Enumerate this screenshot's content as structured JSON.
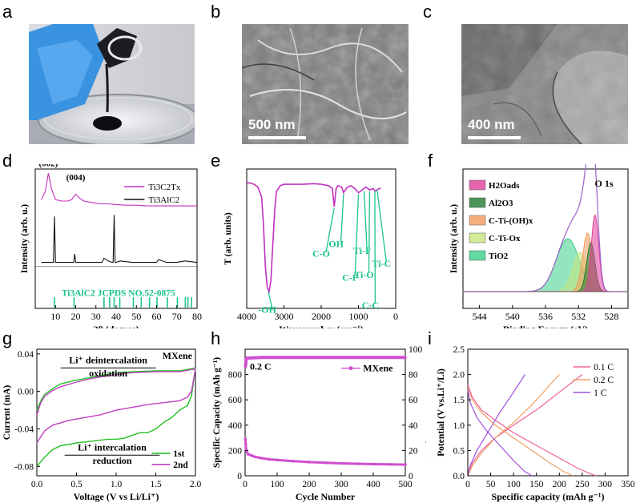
{
  "panels": {
    "a": {
      "letter": "a"
    },
    "b": {
      "letter": "b",
      "scale_bar": "500 nm"
    },
    "c": {
      "letter": "c",
      "scale_bar": "400 nm"
    },
    "d": {
      "letter": "d"
    },
    "e": {
      "letter": "e"
    },
    "f": {
      "letter": "f"
    },
    "g": {
      "letter": "g"
    },
    "h": {
      "letter": "h"
    },
    "i": {
      "letter": "i"
    }
  },
  "chart_data": [
    {
      "panel": "d",
      "type": "line",
      "xlabel": "2θ (degree)",
      "ylabel": "Intensity (arb. u.)",
      "xlim": [
        0,
        80
      ],
      "xticks": [
        "10",
        "20",
        "30",
        "40",
        "50",
        "60",
        "70",
        "80"
      ],
      "legend": [
        "Ti3C2Tx",
        "Ti3AlC2"
      ],
      "peak_labels": [
        "(002)",
        "(004)"
      ],
      "reference_label": "Ti3AlC2 JCPDS NO.52-0875",
      "series": [
        {
          "name": "Ti3C2Tx",
          "color": "#c030c0",
          "x": [
            3,
            5,
            6.5,
            8,
            10,
            13,
            16,
            18,
            20,
            22,
            24,
            28,
            32,
            36,
            40,
            45,
            50,
            55,
            60,
            65,
            70,
            75,
            80
          ],
          "y": [
            0.78,
            0.84,
            0.97,
            0.86,
            0.78,
            0.77,
            0.77,
            0.78,
            0.82,
            0.79,
            0.77,
            0.76,
            0.75,
            0.75,
            0.745,
            0.74,
            0.74,
            0.735,
            0.735,
            0.735,
            0.735,
            0.735,
            0.735
          ]
        },
        {
          "name": "Ti3AlC2",
          "color": "#111111",
          "x": [
            3,
            9,
            9.5,
            10,
            12,
            19,
            19.5,
            20,
            30,
            33,
            34,
            36,
            38,
            38.5,
            39,
            39.5,
            40,
            42,
            48,
            56,
            60,
            61,
            65,
            70,
            74,
            80
          ],
          "y": [
            0.33,
            0.33,
            0.66,
            0.33,
            0.33,
            0.33,
            0.39,
            0.33,
            0.33,
            0.33,
            0.36,
            0.34,
            0.33,
            0.33,
            0.67,
            0.33,
            0.33,
            0.34,
            0.33,
            0.33,
            0.33,
            0.35,
            0.33,
            0.33,
            0.34,
            0.33
          ]
        }
      ],
      "reference_peaks": [
        9.5,
        19.2,
        34,
        36.8,
        39,
        41.8,
        48.5,
        52.4,
        56.5,
        60.2,
        65.3,
        70.3,
        74.2,
        75.5,
        77.3
      ]
    },
    {
      "panel": "e",
      "type": "line",
      "xlabel": "Wavenumber (cm⁻¹)",
      "ylabel": "T (arb. units)",
      "xlim": [
        4000,
        0
      ],
      "xticks": [
        "4000",
        "3000",
        "2000",
        "1000",
        "0"
      ],
      "annotations": [
        "-OH",
        "C-O",
        "OH",
        "C-F",
        "Ti-F",
        "Ti-O",
        "C-C",
        "Ti-C"
      ],
      "series": [
        {
          "name": "",
          "color": "#c030c0",
          "x": [
            4000,
            3900,
            3800,
            3700,
            3600,
            3550,
            3500,
            3450,
            3400,
            3350,
            3300,
            3250,
            3200,
            3100,
            3000,
            2800,
            2500,
            2200,
            2000,
            1800,
            1700,
            1650,
            1600,
            1550,
            1450,
            1400,
            1300,
            1200,
            1100,
            1000,
            900,
            800,
            700,
            600,
            550,
            500,
            450,
            400
          ],
          "y": [
            0.9,
            0.9,
            0.89,
            0.87,
            0.8,
            0.6,
            0.3,
            0.15,
            0.12,
            0.2,
            0.45,
            0.7,
            0.84,
            0.88,
            0.89,
            0.89,
            0.89,
            0.895,
            0.89,
            0.88,
            0.86,
            0.73,
            0.86,
            0.88,
            0.87,
            0.83,
            0.87,
            0.88,
            0.86,
            0.83,
            0.85,
            0.87,
            0.85,
            0.86,
            0.84,
            0.85,
            0.86,
            0.86
          ]
        }
      ]
    },
    {
      "panel": "f",
      "type": "area",
      "title": "O 1s",
      "xlabel": "Binding Energy (eV)",
      "ylabel": "Intensity (arb. u.)",
      "xlim": [
        546,
        526
      ],
      "xticks": [
        "544",
        "540",
        "536",
        "532",
        "528"
      ],
      "legend": [
        {
          "label": "H2Oads",
          "color": "#e0409a"
        },
        {
          "label": "Al2O3",
          "color": "#1e7a2e"
        },
        {
          "label": "C-Ti-(OH)x",
          "color": "#f29a5a"
        },
        {
          "label": "C-Ti-Ox",
          "color": "#c8e680"
        },
        {
          "label": "TiO2",
          "color": "#3ad08a"
        }
      ],
      "components": [
        {
          "name": "TiO2",
          "center": 533.3,
          "height": 0.38,
          "width": 1.4,
          "color": "#3ad08a"
        },
        {
          "name": "C-Ti-Ox",
          "center": 531.8,
          "height": 0.28,
          "width": 0.9,
          "color": "#c8e680"
        },
        {
          "name": "C-Ti-(OH)x",
          "center": 530.9,
          "height": 0.42,
          "width": 0.6,
          "color": "#f29a5a"
        },
        {
          "name": "Al2O3",
          "center": 530.5,
          "height": 0.35,
          "width": 0.5,
          "color": "#1e7a2e"
        },
        {
          "name": "H2Oads",
          "center": 530.0,
          "height": 0.55,
          "width": 0.45,
          "color": "#e0409a"
        }
      ],
      "background": 0.12
    },
    {
      "panel": "g",
      "type": "line",
      "title": "MXene",
      "xlabel": "Voltage (V vs Li/Li⁺)",
      "ylabel": "Current (mA)",
      "xlim": [
        0,
        2.0
      ],
      "ylim": [
        -0.09,
        0.045
      ],
      "xticks": [
        "0.0",
        "0.5",
        "1.0",
        "1.5",
        "2.0"
      ],
      "yticks": [
        "0.04",
        "0.00",
        "-0.04",
        "-0.08"
      ],
      "yticks_values": [
        0.04,
        0.0,
        -0.04,
        -0.08
      ],
      "legend": [
        "1st",
        "2nd"
      ],
      "annotations": {
        "top": [
          "Li⁺ deintercalation",
          "oxidation"
        ],
        "bottom": [
          "Li⁺ intercalation",
          "reduction"
        ]
      },
      "series": [
        {
          "name": "1st",
          "color": "#22c222",
          "upper_x": [
            0,
            0.05,
            0.1,
            0.2,
            0.3,
            0.5,
            0.7,
            1.0,
            1.2,
            1.5,
            1.8,
            2.0
          ],
          "upper_y": [
            -0.02,
            -0.01,
            -0.003,
            0.003,
            0.008,
            0.012,
            0.015,
            0.02,
            0.021,
            0.022,
            0.022,
            0.025
          ],
          "lower_x": [
            2.0,
            1.95,
            1.9,
            1.8,
            1.7,
            1.6,
            1.5,
            1.4,
            1.3,
            1.2,
            1.1,
            1.0,
            0.9,
            0.7,
            0.5,
            0.3,
            0.2,
            0.1,
            0.0
          ],
          "lower_y": [
            0.025,
            -0.005,
            -0.015,
            -0.02,
            -0.028,
            -0.033,
            -0.04,
            -0.044,
            -0.044,
            -0.047,
            -0.05,
            -0.051,
            -0.051,
            -0.053,
            -0.055,
            -0.058,
            -0.062,
            -0.07,
            -0.08
          ]
        },
        {
          "name": "2nd",
          "color": "#c040c0",
          "upper_x": [
            0,
            0.05,
            0.1,
            0.2,
            0.3,
            0.5,
            0.7,
            1.0,
            1.2,
            1.5,
            1.8,
            2.0
          ],
          "upper_y": [
            -0.025,
            -0.012,
            -0.005,
            0.001,
            0.005,
            0.01,
            0.014,
            0.018,
            0.02,
            0.021,
            0.021,
            0.024
          ],
          "lower_x": [
            2.0,
            1.95,
            1.9,
            1.8,
            1.6,
            1.4,
            1.2,
            1.0,
            0.8,
            0.6,
            0.4,
            0.2,
            0.1,
            0.0
          ],
          "lower_y": [
            0.024,
            0.0,
            -0.006,
            -0.01,
            -0.012,
            -0.014,
            -0.017,
            -0.02,
            -0.025,
            -0.028,
            -0.031,
            -0.036,
            -0.042,
            -0.055
          ]
        }
      ]
    },
    {
      "panel": "h",
      "type": "scatter",
      "xlabel": "Cycle Number",
      "ylabel": "Specific Capacity (mAh g⁻¹)",
      "y2label": "Coulombic Efficiency (%)",
      "rate_label": "0.2 C",
      "legend": [
        "MXene"
      ],
      "xlim": [
        0,
        500
      ],
      "ylim": [
        0,
        1000
      ],
      "y2lim": [
        0,
        100
      ],
      "xticks": [
        "0",
        "100",
        "200",
        "300",
        "400",
        "500"
      ],
      "yticks": [
        "0",
        "200",
        "400",
        "600",
        "800"
      ],
      "y2ticks": [
        "0",
        "20",
        "40",
        "60",
        "80",
        "100"
      ],
      "series": [
        {
          "name": "capacity",
          "color": "#d050d0",
          "x": [
            1,
            2,
            3,
            5,
            10,
            20,
            30,
            50,
            75,
            100,
            150,
            200,
            250,
            300,
            350,
            400,
            450,
            500
          ],
          "y": [
            290,
            250,
            210,
            190,
            170,
            160,
            150,
            140,
            130,
            125,
            115,
            108,
            103,
            98,
            95,
            92,
            90,
            88
          ]
        },
        {
          "name": "efficiency",
          "color": "#d050d0",
          "x": [
            1,
            2,
            3,
            5,
            10,
            50,
            100,
            200,
            300,
            400,
            500
          ],
          "y": [
            86,
            88,
            92,
            93,
            93,
            93.5,
            93.5,
            93.5,
            93.5,
            93.5,
            93.5
          ]
        }
      ]
    },
    {
      "panel": "i",
      "type": "line",
      "xlabel": "Specific capacity (mAh g⁻¹)",
      "ylabel": "Potential (V vs.Li⁺/Li)",
      "xlim": [
        0,
        350
      ],
      "ylim": [
        0,
        2.5
      ],
      "xticks": [
        "0",
        "50",
        "100",
        "150",
        "200",
        "250",
        "300",
        "350"
      ],
      "yticks": [
        "0.0",
        "0.5",
        "1.0",
        "1.5",
        "2.0",
        "2.5"
      ],
      "legend": [
        "0.1 C",
        "0.2 C",
        "1 C"
      ],
      "series": [
        {
          "name": "0.1 C",
          "color": "#f0609a",
          "discharge_x": [
            0,
            10,
            30,
            60,
            100,
            150,
            200,
            240,
            265,
            280
          ],
          "discharge_y": [
            1.8,
            1.55,
            1.3,
            1.1,
            0.85,
            0.6,
            0.35,
            0.15,
            0.05,
            0.0
          ],
          "charge_x": [
            0,
            10,
            30,
            60,
            100,
            150,
            200,
            250
          ],
          "charge_y": [
            0.0,
            0.25,
            0.5,
            0.75,
            1.0,
            1.3,
            1.65,
            2.0
          ]
        },
        {
          "name": "0.2 C",
          "color": "#f0a060",
          "discharge_x": [
            0,
            10,
            30,
            60,
            100,
            140,
            180,
            210,
            230
          ],
          "discharge_y": [
            1.75,
            1.5,
            1.25,
            1.0,
            0.75,
            0.5,
            0.25,
            0.08,
            0.0
          ],
          "charge_x": [
            0,
            10,
            30,
            60,
            100,
            140,
            175,
            200
          ],
          "charge_y": [
            0.0,
            0.2,
            0.45,
            0.75,
            1.05,
            1.4,
            1.75,
            2.0
          ]
        },
        {
          "name": "1 C",
          "color": "#a050e0",
          "discharge_x": [
            0,
            5,
            20,
            40,
            70,
            100,
            125,
            140
          ],
          "discharge_y": [
            1.7,
            1.45,
            1.15,
            0.9,
            0.6,
            0.3,
            0.08,
            0.0
          ],
          "charge_x": [
            0,
            5,
            20,
            40,
            70,
            100,
            125
          ],
          "charge_y": [
            0.0,
            0.2,
            0.5,
            0.8,
            1.25,
            1.65,
            2.0
          ]
        }
      ]
    }
  ]
}
